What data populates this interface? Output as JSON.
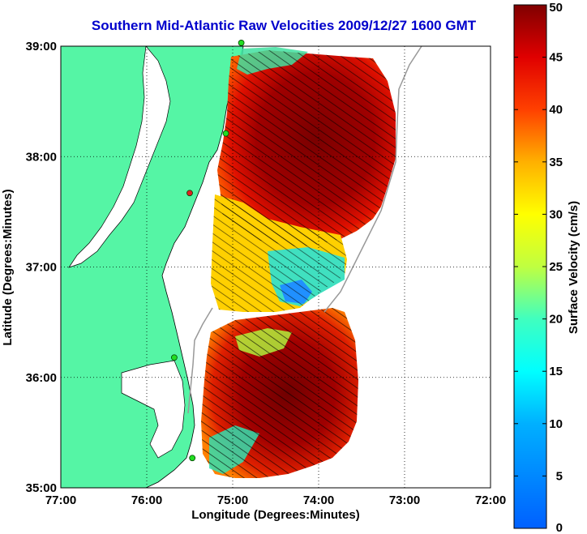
{
  "title": "Southern Mid-Atlantic Raw Velocities 2009/12/27 1600 GMT",
  "axes": {
    "xlabel": "Longitude (Degrees:Minutes)",
    "ylabel": "Latitude (Degrees:Minutes)",
    "x_ticks": [
      "77:00",
      "76:00",
      "75:00",
      "74:00",
      "73:00",
      "72:00"
    ],
    "y_ticks": [
      "39:00",
      "38:00",
      "37:00",
      "36:00",
      "35:00"
    ],
    "x_range": [
      -77,
      -72
    ],
    "y_range": [
      35,
      39
    ]
  },
  "colorbar": {
    "label": "Surface Velocity (cm/s)",
    "ticks": [
      "50",
      "45",
      "40",
      "35",
      "30",
      "25",
      "20",
      "15",
      "10",
      "5",
      "0"
    ],
    "range": [
      0,
      50
    ]
  },
  "colors": {
    "land": "#55f5a5",
    "title": "#0000cc",
    "station": "#22dd22",
    "station_alt": "#dd2222"
  },
  "stations": [
    {
      "lon": -74.9,
      "lat": 39.03,
      "color": "green"
    },
    {
      "lon": -75.08,
      "lat": 38.21,
      "color": "green"
    },
    {
      "lon": -75.5,
      "lat": 37.67,
      "color": "red"
    },
    {
      "lon": -75.68,
      "lat": 36.18,
      "color": "green"
    },
    {
      "lon": -75.47,
      "lat": 35.27,
      "color": "green"
    }
  ]
}
